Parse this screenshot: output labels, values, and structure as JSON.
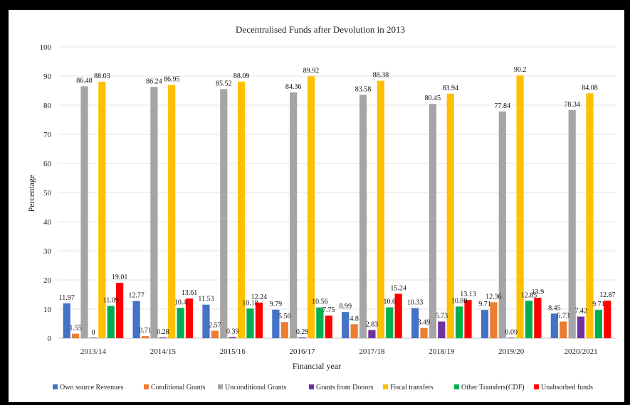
{
  "chart_data": {
    "type": "bar",
    "title": "Decentralised Funds after Devolution in 2013",
    "xlabel": "Financial year",
    "ylabel": "Percentage",
    "ylim": [
      0,
      100
    ],
    "yticks": [
      0,
      10,
      20,
      30,
      40,
      50,
      60,
      70,
      80,
      90,
      100
    ],
    "grid": true,
    "legend_position": "bottom",
    "categories": [
      "2013/14",
      "2014/15",
      "2015/16",
      "2016/17",
      "2017/18",
      "2018/19",
      "2019/20",
      "2020/2021"
    ],
    "series": [
      {
        "name": "Own source Revenues",
        "color": "#4472C4",
        "values": [
          11.97,
          12.77,
          11.53,
          9.79,
          8.99,
          10.33,
          9.71,
          8.45
        ],
        "labels": [
          "11.97",
          "12.77",
          "11.53",
          "9.79",
          "8.99",
          "10.33",
          "9.71",
          "8.45"
        ]
      },
      {
        "name": "Conditional Grants",
        "color": "#ED7D31",
        "values": [
          1.55,
          0.71,
          2.57,
          5.56,
          4.8,
          3.49,
          12.36,
          5.73
        ],
        "labels": [
          "1.55",
          "0.71",
          "2.57",
          "5.56",
          "4.8",
          "3.49",
          "12.36",
          "5.73"
        ]
      },
      {
        "name": "Unconditional Grants",
        "color": "#A5A5A5",
        "values": [
          86.48,
          86.24,
          85.52,
          84.36,
          83.58,
          80.45,
          77.84,
          78.34
        ],
        "labels": [
          "86.48",
          "86.24",
          "85.52",
          "84.36",
          "83.58",
          "80.45",
          "77.84",
          "78.34"
        ]
      },
      {
        "name": "Grants from Donors",
        "color": "#7030A0",
        "values": [
          0,
          0.28,
          0.39,
          0.29,
          2.83,
          5.73,
          0.09,
          7.42
        ],
        "labels": [
          "0",
          "0.28",
          "0.39",
          "0.29",
          "2.83",
          "5.73",
          "0.09",
          "7.42"
        ]
      },
      {
        "name": "Fiscal transfers",
        "color": "#FFC000",
        "values": [
          88.03,
          86.95,
          88.09,
          89.92,
          88.38,
          83.94,
          90.2,
          84.08
        ],
        "labels": [
          "88.03",
          "86.95",
          "88.09",
          "89.92",
          "88.38",
          "83.94",
          "90.2",
          "84.08"
        ]
      },
      {
        "name": "Other Transfers(CDF)",
        "color": "#00B050",
        "values": [
          11.09,
          10.4,
          10.18,
          10.56,
          10.6,
          10.88,
          12.85,
          9.71
        ],
        "labels": [
          "11.09",
          "10.4",
          "10.18",
          "10.56",
          "10.6",
          "10.88",
          "12.85",
          "9.71"
        ]
      },
      {
        "name": "Unabsorbed funds",
        "color": "#FF0000",
        "values": [
          19.01,
          13.61,
          12.24,
          7.75,
          15.24,
          13.13,
          13.9,
          12.87
        ],
        "labels": [
          "19.01",
          "13.61",
          "12.24",
          "7.75",
          "15.24",
          "13.13",
          "13.9",
          "12.87"
        ]
      }
    ]
  }
}
